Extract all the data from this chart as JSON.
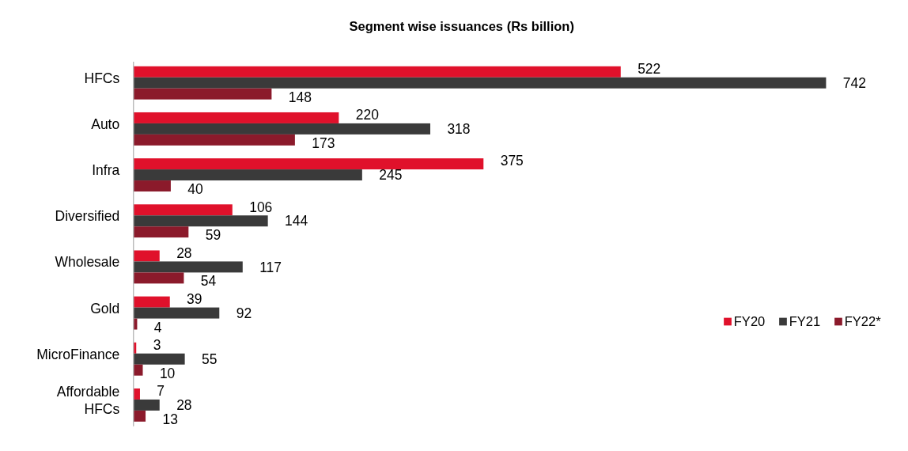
{
  "chart_data": {
    "type": "bar",
    "orientation": "horizontal",
    "title": "Segment wise issuances (Rs billion)",
    "categories": [
      "HFCs",
      "Auto",
      "Infra",
      "Diversified",
      "Wholesale",
      "Gold",
      "MicroFinance",
      "Affordable HFCs"
    ],
    "series": [
      {
        "name": "FY20",
        "color": "#e0112b",
        "values": [
          522,
          220,
          375,
          106,
          28,
          39,
          3,
          7
        ]
      },
      {
        "name": "FY21",
        "color": "#3a3a3a",
        "values": [
          742,
          318,
          245,
          144,
          117,
          92,
          55,
          28
        ]
      },
      {
        "name": "FY22*",
        "color": "#8b1a2b",
        "values": [
          148,
          173,
          40,
          59,
          54,
          4,
          10,
          13
        ]
      }
    ],
    "data_labels": true,
    "legend": "right",
    "grid": false
  }
}
